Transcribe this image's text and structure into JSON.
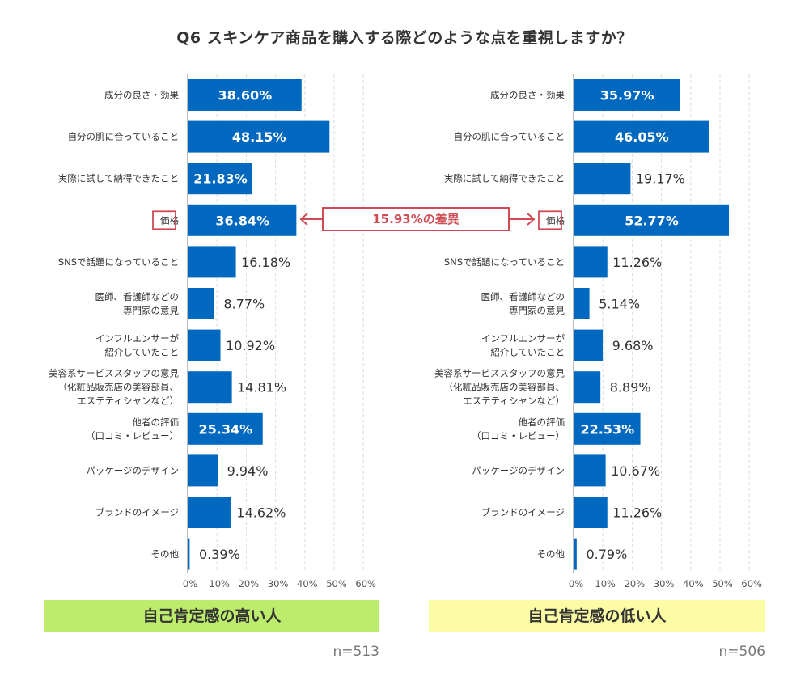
{
  "title": "Q6 スキンケア商品を購入する際どのような点を重視しますか？",
  "colors": {
    "bar": "#0068bf",
    "highlight": "#cc4b55",
    "banner_high": "#bdec6c",
    "banner_low": "#fbfca4",
    "grid": "#dddddd",
    "axis": "#bbbbbb"
  },
  "annotation": {
    "text": "15.93%の差異",
    "highlight_category": "価格"
  },
  "chart_data": [
    {
      "type": "bar",
      "orientation": "horizontal",
      "group": "自己肯定感の高い人",
      "n": "n=513",
      "categories": [
        "成分の良さ・効果",
        "自分の肌に合っていること",
        "実際に試して納得できたこと",
        "価格",
        "SNSで話題になっていること",
        "医師、看護師などの\n専門家の意見",
        "インフルエンサーが\n紹介していたこと",
        "美容系サービススタッフの意見\n（化粧品販売店の美容部員、\nエステティシャンなど）",
        "他者の評価\n（口コミ・レビュー）",
        "パッケージのデザイン",
        "ブランドのイメージ",
        "その他"
      ],
      "values": [
        38.6,
        48.15,
        21.83,
        36.84,
        16.18,
        8.77,
        10.92,
        14.81,
        25.34,
        9.94,
        14.62,
        0.39
      ],
      "labels": [
        "38.60%",
        "48.15%",
        "21.83%",
        "36.84%",
        "16.18%",
        "8.77%",
        "10.92%",
        "14.81%",
        "25.34%",
        "9.94%",
        "14.62%",
        "0.39%"
      ],
      "xlim": [
        0,
        60
      ],
      "xticks": [
        "0%",
        "10%",
        "20%",
        "30%",
        "40%",
        "50%",
        "60%"
      ],
      "grid": true
    },
    {
      "type": "bar",
      "orientation": "horizontal",
      "group": "自己肯定感の低い人",
      "n": "n=506",
      "categories": [
        "成分の良さ・効果",
        "自分の肌に合っていること",
        "実際に試して納得できたこと",
        "価格",
        "SNSで話題になっていること",
        "医師、看護師などの\n専門家の意見",
        "インフルエンサーが\n紹介していたこと",
        "美容系サービススタッフの意見\n（化粧品販売店の美容部員、\nエステティシャンなど）",
        "他者の評価\n（口コミ・レビュー）",
        "パッケージのデザイン",
        "ブランドのイメージ",
        "その他"
      ],
      "values": [
        35.97,
        46.05,
        19.17,
        52.77,
        11.26,
        5.14,
        9.68,
        8.89,
        22.53,
        10.67,
        11.26,
        0.79
      ],
      "labels": [
        "35.97%",
        "46.05%",
        "19.17%",
        "52.77%",
        "11.26%",
        "5.14%",
        "9.68%",
        "8.89%",
        "22.53%",
        "10.67%",
        "11.26%",
        "0.79%"
      ],
      "xlim": [
        0,
        60
      ],
      "xticks": [
        "0%",
        "10%",
        "20%",
        "30%",
        "40%",
        "50%",
        "60%"
      ],
      "grid": true
    }
  ]
}
